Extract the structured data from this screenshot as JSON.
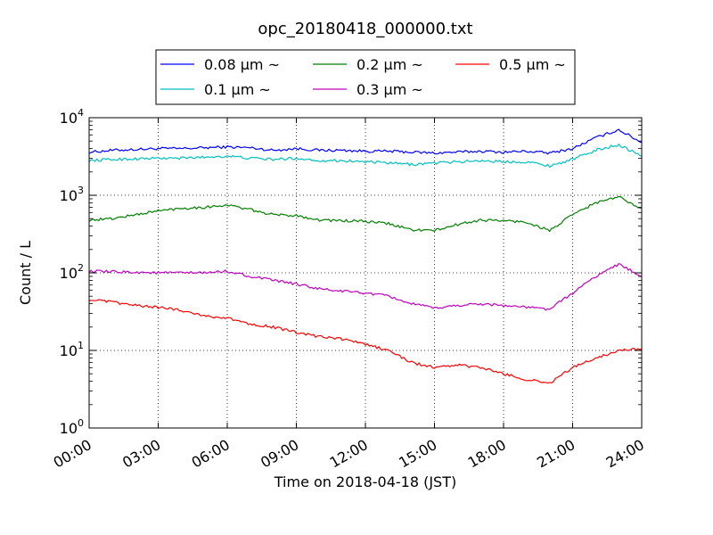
{
  "chart_data": {
    "type": "line",
    "title": "opc_20180418_000000.txt",
    "xlabel": "Time on 2018-04-18 (JST)",
    "ylabel": "Count / L",
    "yscale": "log",
    "xlim": [
      "00:00",
      "24:00"
    ],
    "ylim": [
      1,
      10000
    ],
    "x_ticks": [
      "00:00",
      "03:00",
      "06:00",
      "09:00",
      "12:00",
      "15:00",
      "18:00",
      "21:00",
      "24:00"
    ],
    "y_ticks": [
      {
        "base": "10",
        "exp": "0",
        "value": 1
      },
      {
        "base": "10",
        "exp": "1",
        "value": 10
      },
      {
        "base": "10",
        "exp": "2",
        "value": 100
      },
      {
        "base": "10",
        "exp": "3",
        "value": 1000
      },
      {
        "base": "10",
        "exp": "4",
        "value": 10000
      }
    ],
    "grid": true,
    "legend": "top-center, outside plot, 3 columns",
    "x": [
      "00:00",
      "01:00",
      "02:00",
      "03:00",
      "04:00",
      "05:00",
      "06:00",
      "07:00",
      "08:00",
      "09:00",
      "10:00",
      "11:00",
      "12:00",
      "13:00",
      "14:00",
      "15:00",
      "16:00",
      "17:00",
      "18:00",
      "19:00",
      "20:00",
      "21:00",
      "22:00",
      "23:00",
      "24:00"
    ],
    "series": [
      {
        "name": "0.08 μm ~",
        "color": "#0000ff",
        "values": [
          3600,
          3800,
          3900,
          4000,
          4000,
          4100,
          4200,
          4100,
          3800,
          4000,
          3800,
          3800,
          3700,
          3700,
          3600,
          3500,
          3600,
          3700,
          3600,
          3700,
          3500,
          4000,
          5500,
          7000,
          4800
        ]
      },
      {
        "name": "0.1 μm ~",
        "color": "#00bfbf",
        "values": [
          2800,
          2900,
          2950,
          3000,
          3000,
          3100,
          3200,
          3000,
          2900,
          3000,
          2800,
          2800,
          2700,
          2600,
          2500,
          2600,
          2700,
          2800,
          2700,
          2700,
          2400,
          2900,
          3800,
          4500,
          3200
        ]
      },
      {
        "name": "0.2 μm ~",
        "color": "#008000",
        "values": [
          480,
          500,
          560,
          630,
          680,
          700,
          750,
          650,
          560,
          550,
          480,
          470,
          460,
          430,
          360,
          350,
          420,
          480,
          470,
          450,
          350,
          560,
          800,
          950,
          680
        ]
      },
      {
        "name": "0.3 μm ~",
        "color": "#bf00bf",
        "values": [
          105,
          103,
          102,
          100,
          100,
          100,
          105,
          90,
          80,
          72,
          62,
          58,
          55,
          50,
          40,
          35,
          38,
          40,
          38,
          36,
          34,
          55,
          90,
          130,
          90
        ]
      },
      {
        "name": "0.5 μm ~",
        "color": "#ff0000",
        "values": [
          45,
          42,
          38,
          36,
          33,
          28,
          26,
          22,
          20,
          17,
          15,
          14,
          12,
          10,
          7,
          6,
          6.5,
          6,
          5,
          4.2,
          3.8,
          6,
          8,
          10,
          10.5
        ]
      }
    ]
  }
}
